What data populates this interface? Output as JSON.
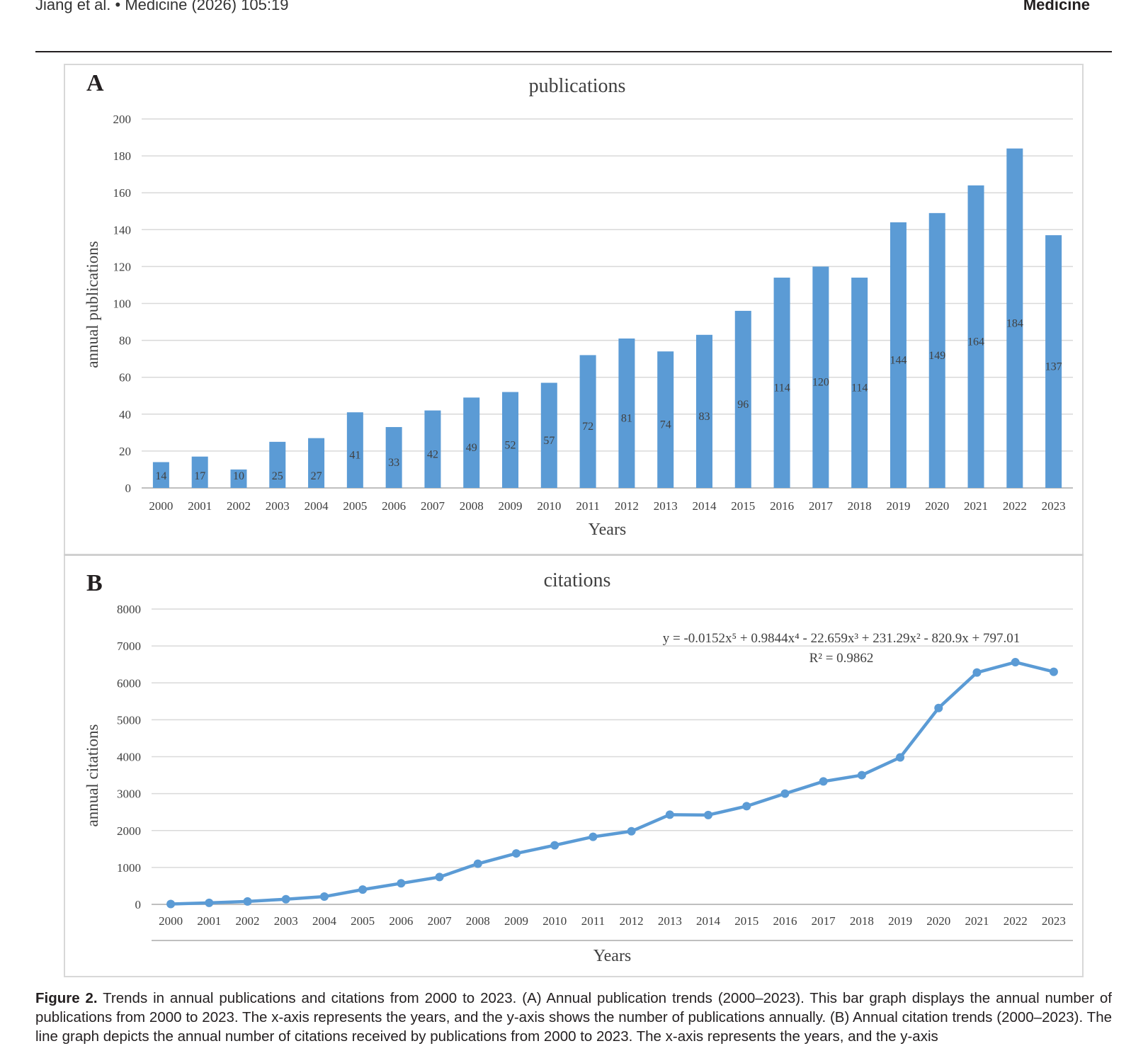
{
  "header": {
    "citation": "Jiang et al.  •  Medicine (2026) 105:19",
    "journal": "Medicine"
  },
  "caption": {
    "label": "Figure 2.",
    "text": "Trends in annual publications and citations from 2000 to 2023. (A) Annual publication trends (2000–2023). This bar graph displays the annual number of publications from 2000 to 2023. The x-axis represents the years, and the y-axis shows the number of publications annually. (B) Annual citation trends (2000–2023). The line graph depicts the annual number of citations received by publications from 2000 to 2023. The x-axis represents the years, and the y-axis"
  },
  "colors": {
    "bar": "#5b9bd5",
    "line": "#5b9bd5",
    "grid": "#d9d9d9",
    "axis_text": "#404040"
  },
  "chart_data": [
    {
      "panel": "A",
      "type": "bar",
      "title": "publications",
      "xlabel": "Years",
      "ylabel": "annual publications",
      "ylim": [
        0,
        200
      ],
      "yticks": [
        0,
        20,
        40,
        60,
        80,
        100,
        120,
        140,
        160,
        180,
        200
      ],
      "grid": true,
      "categories": [
        "2000",
        "2001",
        "2002",
        "2003",
        "2004",
        "2005",
        "2006",
        "2007",
        "2008",
        "2009",
        "2010",
        "2011",
        "2012",
        "2013",
        "2014",
        "2015",
        "2016",
        "2017",
        "2018",
        "2019",
        "2020",
        "2021",
        "2022",
        "2023"
      ],
      "values": [
        14,
        17,
        10,
        25,
        27,
        41,
        33,
        42,
        49,
        52,
        57,
        72,
        81,
        74,
        83,
        96,
        114,
        120,
        114,
        144,
        149,
        164,
        184,
        137
      ],
      "data_labels": [
        "14",
        "17",
        "10",
        "25",
        "27",
        "41",
        "33",
        "42",
        "49",
        "52",
        "57",
        "72",
        "81",
        "74",
        "83",
        "96",
        "114",
        "120",
        "114",
        "144",
        "149",
        "164",
        "184",
        "137"
      ]
    },
    {
      "panel": "B",
      "type": "line",
      "title": "citations",
      "xlabel": "Years",
      "ylabel": "annual citations",
      "ylim": [
        0,
        8000
      ],
      "yticks": [
        0,
        1000,
        2000,
        3000,
        4000,
        5000,
        6000,
        7000,
        8000
      ],
      "grid": true,
      "categories": [
        "2000",
        "2001",
        "2002",
        "2003",
        "2004",
        "2005",
        "2006",
        "2007",
        "2008",
        "2009",
        "2010",
        "2011",
        "2012",
        "2013",
        "2014",
        "2015",
        "2016",
        "2017",
        "2018",
        "2019",
        "2020",
        "2021",
        "2022",
        "2023"
      ],
      "values": [
        10,
        40,
        80,
        140,
        210,
        400,
        570,
        740,
        1100,
        1380,
        1600,
        1830,
        1980,
        2430,
        2420,
        2660,
        3000,
        3330,
        3500,
        3980,
        5320,
        6280,
        6560,
        6300
      ],
      "trendline": {
        "equation": "y = -0.0152x⁵ + 0.9844x⁴ - 22.659x³ + 231.29x² - 820.9x + 797.01",
        "r2": "R² = 0.9862"
      }
    }
  ]
}
